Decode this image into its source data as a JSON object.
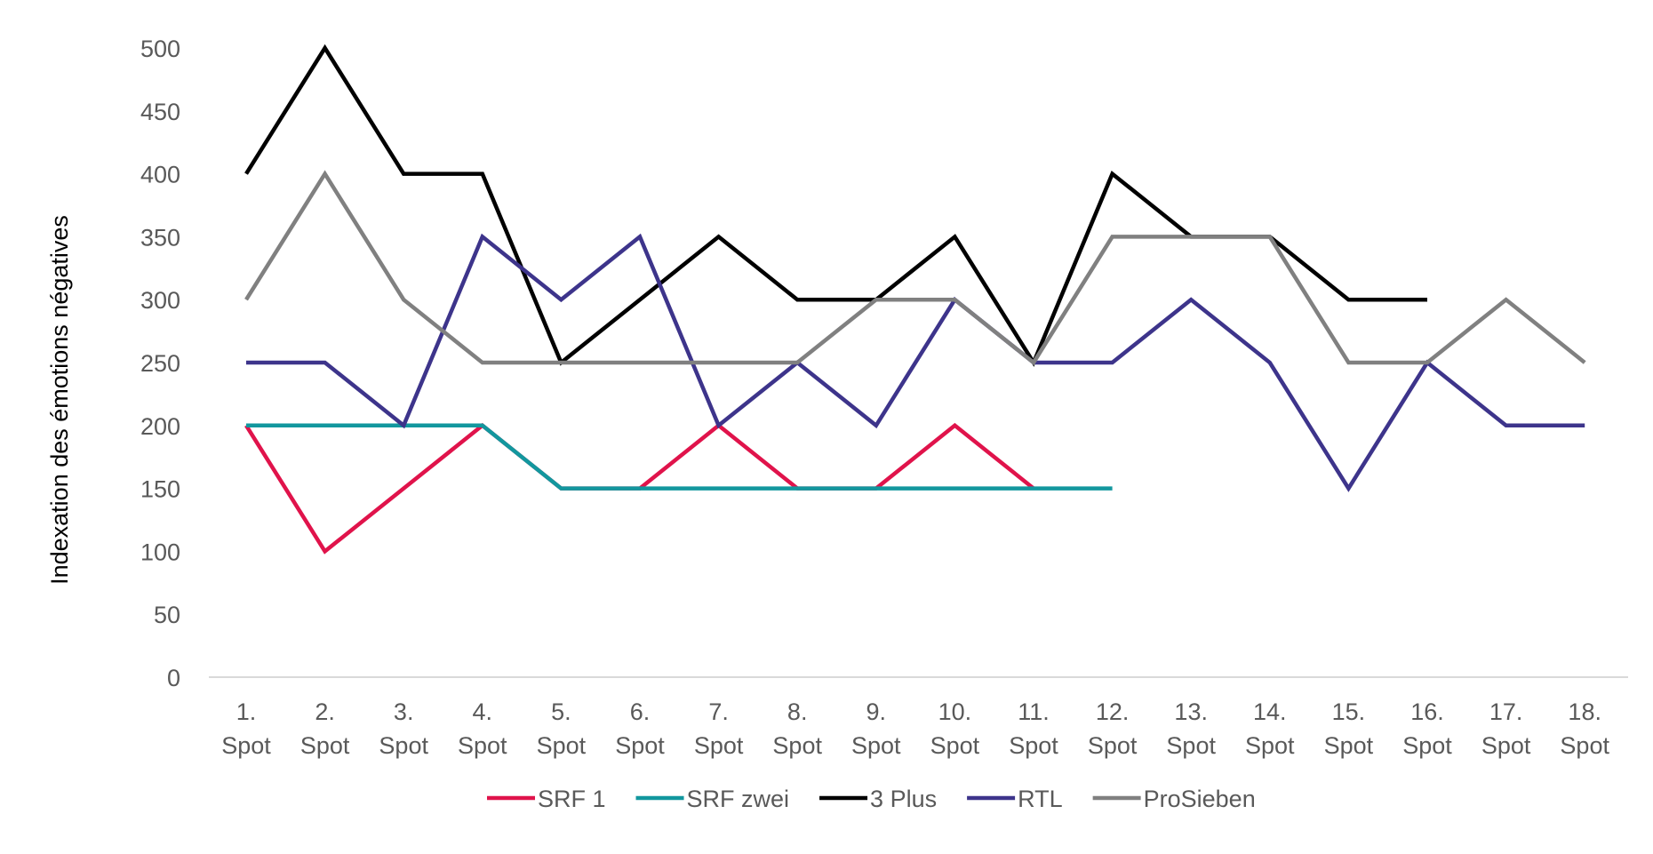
{
  "chart_data": {
    "type": "line",
    "title": "",
    "xlabel": "",
    "ylabel": "Indexation des émotions négatives",
    "ylim": [
      0,
      500
    ],
    "yticks": [
      0,
      50,
      100,
      150,
      200,
      250,
      300,
      350,
      400,
      450,
      500
    ],
    "grid": false,
    "legend_position": "bottom",
    "categories": [
      [
        "1.",
        "Spot"
      ],
      [
        "2.",
        "Spot"
      ],
      [
        "3.",
        "Spot"
      ],
      [
        "4.",
        "Spot"
      ],
      [
        "5.",
        "Spot"
      ],
      [
        "6.",
        "Spot"
      ],
      [
        "7.",
        "Spot"
      ],
      [
        "8.",
        "Spot"
      ],
      [
        "9.",
        "Spot"
      ],
      [
        "10.",
        "Spot"
      ],
      [
        "11.",
        "Spot"
      ],
      [
        "12.",
        "Spot"
      ],
      [
        "13.",
        "Spot"
      ],
      [
        "14.",
        "Spot"
      ],
      [
        "15.",
        "Spot"
      ],
      [
        "16.",
        "Spot"
      ],
      [
        "17.",
        "Spot"
      ],
      [
        "18.",
        "Spot"
      ]
    ],
    "series": [
      {
        "name": "SRF 1",
        "color": "#e0134b",
        "values": [
          200,
          100,
          150,
          200,
          150,
          150,
          200,
          150,
          150,
          200,
          150,
          null,
          null,
          null,
          null,
          null,
          null,
          null
        ]
      },
      {
        "name": "SRF zwei",
        "color": "#12979e",
        "values": [
          200,
          200,
          200,
          200,
          150,
          150,
          150,
          150,
          150,
          150,
          150,
          150,
          null,
          null,
          null,
          null,
          null,
          null
        ]
      },
      {
        "name": "3 Plus",
        "color": "#000000",
        "values": [
          400,
          500,
          400,
          400,
          250,
          300,
          350,
          300,
          300,
          350,
          250,
          400,
          350,
          350,
          300,
          300,
          null,
          null
        ]
      },
      {
        "name": "RTL",
        "color": "#3d348b",
        "values": [
          250,
          250,
          200,
          350,
          300,
          350,
          200,
          250,
          200,
          300,
          250,
          250,
          300,
          250,
          150,
          250,
          200,
          200
        ]
      },
      {
        "name": "ProSieben",
        "color": "#808080",
        "values": [
          300,
          400,
          300,
          250,
          250,
          250,
          250,
          250,
          300,
          300,
          250,
          350,
          350,
          350,
          250,
          250,
          300,
          250
        ]
      }
    ],
    "axis_color": "#d9d9d9"
  }
}
